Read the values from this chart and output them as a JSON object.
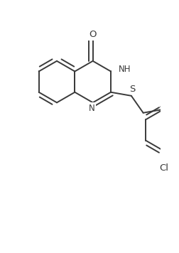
{
  "bg_color": "#ffffff",
  "line_color": "#3a3a3a",
  "line_width": 1.4,
  "font_size": 8.5,
  "figsize": [
    2.52,
    3.56
  ],
  "dpi": 100,
  "xlim": [
    0,
    252
  ],
  "ylim": [
    0,
    356
  ]
}
